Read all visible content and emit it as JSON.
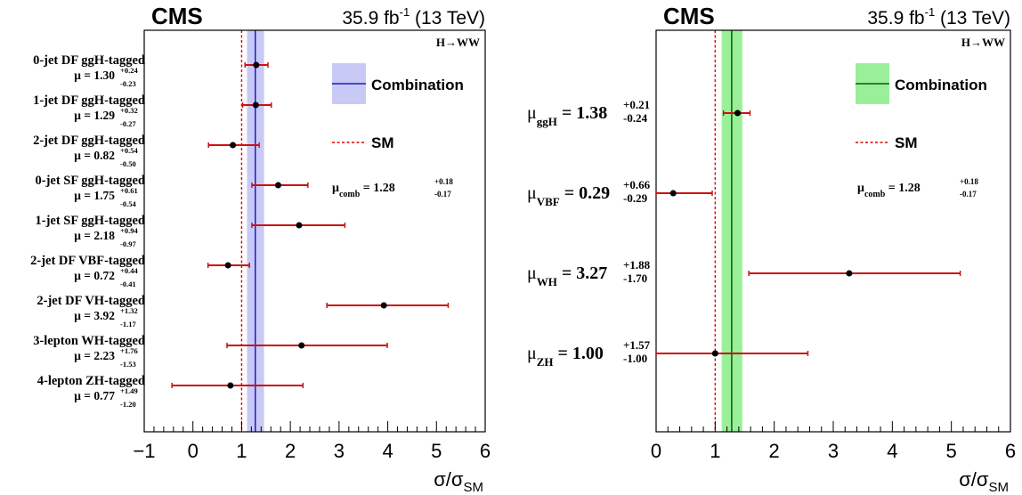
{
  "chart_data": [
    {
      "type": "scatter",
      "cms_label": "CMS",
      "lumi_label": "35.9 fb",
      "lumi_exp": "-1",
      "energy_label": "(13 TeV)",
      "process_label": "H→WW",
      "xlabel": "σ/σ",
      "xlabel_sub": "SM",
      "xlim": [
        -1,
        6
      ],
      "x_ticks": [
        "−1",
        "0",
        "1",
        "2",
        "3",
        "4",
        "5",
        "6"
      ],
      "x_tick_values": [
        -1,
        0,
        1,
        2,
        3,
        4,
        5,
        6
      ],
      "sm_value": 1.0,
      "combination": {
        "value": 1.28,
        "up": 0.18,
        "down": 0.17,
        "color": "#c9c9f5",
        "line_color": "#1a1acc"
      },
      "legend": {
        "combination_label": "Combination",
        "sm_label": "SM"
      },
      "mu_comb": {
        "symbol": "μ",
        "sub": "comb",
        "value": "= 1.28",
        "up": "+0.18",
        "down": "-0.17"
      },
      "points": [
        {
          "category": "0-jet DF ggH-tagged",
          "mu_text": "μ = 1.30",
          "value": 1.3,
          "up_text": "+0.24",
          "down_text": "-0.23",
          "up": 0.24,
          "down": 0.23
        },
        {
          "category": "1-jet DF ggH-tagged",
          "mu_text": "μ = 1.29",
          "value": 1.29,
          "up_text": "+0.32",
          "down_text": "-0.27",
          "up": 0.32,
          "down": 0.27
        },
        {
          "category": "2-jet DF ggH-tagged",
          "mu_text": "μ = 0.82",
          "value": 0.82,
          "up_text": "+0.54",
          "down_text": "-0.50",
          "up": 0.54,
          "down": 0.5
        },
        {
          "category": "0-jet SF ggH-tagged",
          "mu_text": "μ = 1.75",
          "value": 1.75,
          "up_text": "+0.61",
          "down_text": "-0.54",
          "up": 0.61,
          "down": 0.54
        },
        {
          "category": "1-jet SF ggH-tagged",
          "mu_text": "μ = 2.18",
          "value": 2.18,
          "up_text": "+0.94",
          "down_text": "-0.97",
          "up": 0.94,
          "down": 0.97
        },
        {
          "category": "2-jet DF VBF-tagged",
          "mu_text": "μ = 0.72",
          "value": 0.72,
          "up_text": "+0.44",
          "down_text": "-0.41",
          "up": 0.44,
          "down": 0.41
        },
        {
          "category": "2-jet DF VH-tagged",
          "mu_text": "μ = 3.92",
          "value": 3.92,
          "up_text": "+1.32",
          "down_text": "-1.17",
          "up": 1.32,
          "down": 1.17
        },
        {
          "category": "3-lepton WH-tagged",
          "mu_text": "μ = 2.23",
          "value": 2.23,
          "up_text": "+1.76",
          "down_text": "-1.53",
          "up": 1.76,
          "down": 1.53
        },
        {
          "category": "4-lepton ZH-tagged",
          "mu_text": "μ = 0.77",
          "value": 0.77,
          "up_text": "+1.49",
          "down_text": "-1.20",
          "up": 1.49,
          "down": 1.2
        }
      ]
    },
    {
      "type": "scatter",
      "cms_label": "CMS",
      "lumi_label": "35.9 fb",
      "lumi_exp": "-1",
      "energy_label": "(13 TeV)",
      "process_label": "H→WW",
      "xlabel": "σ/σ",
      "xlabel_sub": "SM",
      "xlim": [
        0,
        6
      ],
      "x_ticks": [
        "0",
        "1",
        "2",
        "3",
        "4",
        "5",
        "6"
      ],
      "x_tick_values": [
        0,
        1,
        2,
        3,
        4,
        5,
        6
      ],
      "sm_value": 1.0,
      "combination": {
        "value": 1.28,
        "up": 0.18,
        "down": 0.17,
        "color": "#99f099",
        "line_color": "#0a5a0a"
      },
      "legend": {
        "combination_label": "Combination",
        "sm_label": "SM"
      },
      "mu_comb": {
        "symbol": "μ",
        "sub": "comb",
        "value": "= 1.28",
        "up": "+0.18",
        "down": "-0.17"
      },
      "points": [
        {
          "symbol": "μ",
          "sub": "ggH",
          "mu_text": "= 1.38",
          "value": 1.38,
          "up_text": "+0.21",
          "down_text": "-0.24",
          "up": 0.21,
          "down": 0.24
        },
        {
          "symbol": "μ",
          "sub": "VBF",
          "mu_text": "= 0.29",
          "value": 0.29,
          "up_text": "+0.66",
          "down_text": "-0.29",
          "up": 0.66,
          "down": 0.29
        },
        {
          "symbol": "μ",
          "sub": "WH",
          "mu_text": "= 3.27",
          "value": 3.27,
          "up_text": "+1.88",
          "down_text": "-1.70",
          "up": 1.88,
          "down": 1.7
        },
        {
          "symbol": "μ",
          "sub": "ZH",
          "mu_text": "= 1.00",
          "value": 1.0,
          "up_text": "+1.57",
          "down_text": "-1.00",
          "up": 1.57,
          "down": 1.0
        }
      ]
    }
  ]
}
